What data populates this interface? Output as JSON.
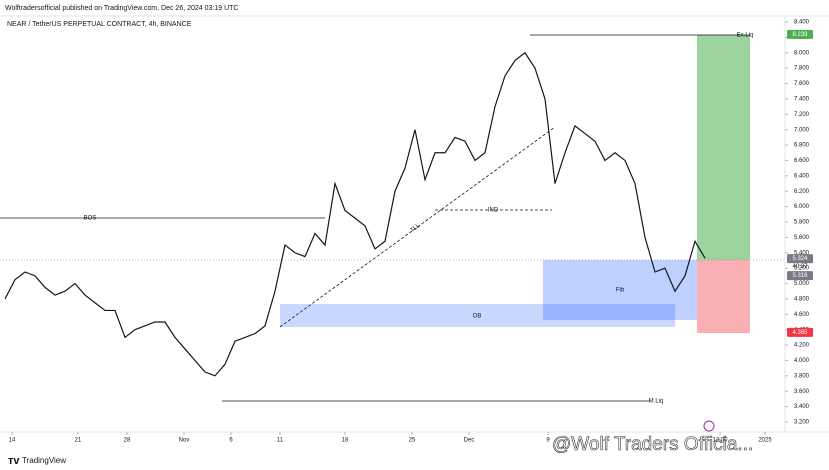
{
  "header": "Wolftradersofficial published on TradingView.com, Dec 26, 2024 03:19 UTC",
  "footer": "TradingView",
  "watermark": "@Wolf Traders Officia...",
  "chart_data": {
    "type": "line",
    "title": "NEAR / TetherUS PERPETUAL CONTRACT, 4h, BINANCE",
    "x": [
      0,
      1,
      2,
      3,
      4,
      5,
      6,
      7,
      8,
      9,
      10,
      11,
      12,
      13,
      14,
      15,
      16,
      17,
      18,
      19,
      20,
      21,
      22,
      23,
      24,
      25,
      26,
      27,
      28,
      29,
      30,
      31,
      32,
      33,
      34,
      35,
      36,
      37,
      38,
      39,
      40,
      41,
      42,
      43,
      44,
      45,
      46,
      47,
      48,
      49,
      50,
      51,
      52,
      53,
      54,
      55,
      56,
      57,
      58,
      59,
      60,
      61,
      62,
      63,
      64,
      65,
      66,
      67,
      68,
      69,
      70
    ],
    "series": [
      {
        "name": "NEAR",
        "color": "#131722",
        "values": [
          4.8,
          5.05,
          5.15,
          5.1,
          4.95,
          4.85,
          4.9,
          5.0,
          4.85,
          4.75,
          4.65,
          4.65,
          4.3,
          4.4,
          4.45,
          4.5,
          4.5,
          4.3,
          4.15,
          4.0,
          3.85,
          3.8,
          3.95,
          4.25,
          4.3,
          4.35,
          4.45,
          4.9,
          5.5,
          5.4,
          5.35,
          5.65,
          5.5,
          6.3,
          5.95,
          5.85,
          5.75,
          5.45,
          5.55,
          6.2,
          6.5,
          7.0,
          6.35,
          6.7,
          6.7,
          6.9,
          6.85,
          6.6,
          6.7,
          7.3,
          7.7,
          7.9,
          8.0,
          7.8,
          7.4,
          6.3,
          6.7,
          7.05,
          6.95,
          6.85,
          6.6,
          6.7,
          6.6,
          6.3,
          5.6,
          5.15,
          5.2,
          4.9,
          5.1,
          5.55,
          5.33
        ]
      }
    ],
    "xlim": [
      -0.5,
      78
    ],
    "xticks": [
      {
        "value": 0.7,
        "label": "14"
      },
      {
        "value": 7.3,
        "label": "21"
      },
      {
        "value": 12.2,
        "label": "28"
      },
      {
        "value": 17.9,
        "label": "Nov"
      },
      {
        "value": 22.6,
        "label": "6"
      },
      {
        "value": 27.5,
        "label": "11"
      },
      {
        "value": 34,
        "label": "18"
      },
      {
        "value": 40.7,
        "label": "25"
      },
      {
        "value": 46.4,
        "label": "Dec"
      },
      {
        "value": 54.3,
        "label": "9"
      },
      {
        "value": 71.5,
        "label": "12:00"
      },
      {
        "value": 76,
        "label": "2025"
      }
    ],
    "ylim": [
      3.2,
      8.4
    ],
    "yticks": [
      {
        "value": 3.2,
        "label": "3.200"
      },
      {
        "value": 3.4,
        "label": "3.400"
      },
      {
        "value": 3.6,
        "label": "3.600"
      },
      {
        "value": 3.8,
        "label": "3.800"
      },
      {
        "value": 4.0,
        "label": "4.000"
      },
      {
        "value": 4.2,
        "label": "4.200"
      },
      {
        "value": 4.4,
        "label": "4.400"
      },
      {
        "value": 4.6,
        "label": "4.600"
      },
      {
        "value": 4.8,
        "label": "4.800"
      },
      {
        "value": 5.0,
        "label": "5.000"
      },
      {
        "value": 5.2,
        "label": "5.200"
      },
      {
        "value": 5.4,
        "label": "5.400"
      },
      {
        "value": 5.6,
        "label": "5.600"
      },
      {
        "value": 5.8,
        "label": "5.800"
      },
      {
        "value": 6.0,
        "label": "6.000"
      },
      {
        "value": 6.2,
        "label": "6.200"
      },
      {
        "value": 6.4,
        "label": "6.400"
      },
      {
        "value": 6.6,
        "label": "6.600"
      },
      {
        "value": 6.8,
        "label": "6.800"
      },
      {
        "value": 7.0,
        "label": "7.000"
      },
      {
        "value": 7.2,
        "label": "7.200"
      },
      {
        "value": 7.4,
        "label": "7.400"
      },
      {
        "value": 7.6,
        "label": "7.600"
      },
      {
        "value": 7.8,
        "label": "7.800"
      },
      {
        "value": 8.0,
        "label": "8.000"
      },
      {
        "value": 8.2,
        "label": "8.200"
      },
      {
        "value": 8.4,
        "label": "8.400"
      }
    ],
    "price_labels": [
      {
        "value": 8.239,
        "color": "#4caf50"
      },
      {
        "value": 5.324,
        "color": "#787b86"
      },
      {
        "value": 5.316,
        "color": "#787b86"
      },
      {
        "value": 4.365,
        "color": "#f23645"
      }
    ],
    "countdown": "40:37",
    "annotations": [
      "BOS",
      "TLL",
      "IND",
      "Ex.Liq",
      "OB",
      "Fib",
      "M.Liq"
    ]
  }
}
